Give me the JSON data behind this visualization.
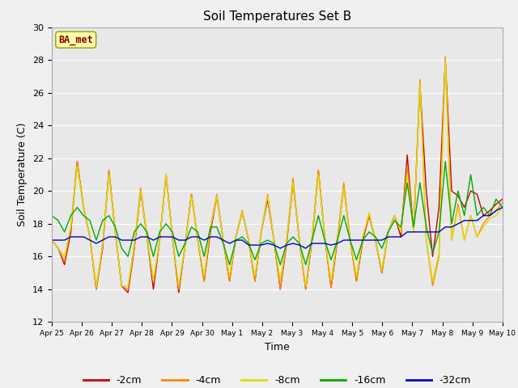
{
  "title": "Soil Temperatures Set B",
  "xlabel": "Time",
  "ylabel": "Soil Temperature (C)",
  "ylim": [
    12,
    30
  ],
  "yticks": [
    12,
    14,
    16,
    18,
    20,
    22,
    24,
    26,
    28,
    30
  ],
  "annotation_text": "BA_met",
  "fig_facecolor": "#f0f0f0",
  "ax_facecolor": "#e8e8e8",
  "colors": {
    "-2cm": "#cc0000",
    "-4cm": "#ff8800",
    "-8cm": "#dddd00",
    "-16cm": "#00aa00",
    "-32cm": "#0000cc"
  },
  "legend_labels": [
    "-2cm",
    "-4cm",
    "-8cm",
    "-16cm",
    "-32cm"
  ],
  "x_tick_labels": [
    "Apr 25",
    "Apr 26",
    "Apr 27",
    "Apr 28",
    "Apr 29",
    "Apr 30",
    "May 1",
    "May 2",
    "May 3",
    "May 4",
    "May 5",
    "May 6",
    "May 7",
    "May 8",
    "May 9",
    "May 10"
  ],
  "data": {
    "t2cm": [
      17.0,
      16.5,
      15.5,
      17.5,
      21.8,
      19.0,
      17.2,
      14.0,
      16.5,
      21.2,
      17.5,
      14.2,
      13.8,
      16.5,
      20.0,
      17.2,
      14.0,
      17.0,
      21.0,
      17.2,
      13.8,
      16.7,
      19.8,
      17.0,
      14.5,
      17.5,
      19.7,
      17.0,
      14.5,
      17.2,
      18.7,
      17.0,
      14.5,
      17.5,
      19.5,
      17.0,
      14.0,
      16.8,
      20.5,
      17.0,
      14.0,
      17.0,
      21.2,
      17.2,
      14.1,
      17.0,
      20.3,
      17.0,
      14.5,
      17.0,
      18.5,
      17.0,
      15.0,
      17.5,
      18.5,
      17.2,
      22.2,
      17.5,
      26.5,
      20.0,
      16.0,
      19.0,
      28.0,
      20.0,
      19.7,
      19.0,
      20.0,
      19.8,
      18.5,
      18.8,
      19.2,
      19.5
    ],
    "t4cm": [
      17.0,
      16.5,
      15.7,
      17.8,
      21.8,
      19.0,
      17.2,
      14.0,
      16.7,
      21.3,
      17.5,
      14.2,
      14.0,
      16.7,
      20.2,
      17.2,
      14.5,
      17.0,
      21.0,
      17.2,
      14.0,
      16.7,
      19.8,
      17.0,
      14.5,
      17.8,
      19.8,
      17.0,
      14.5,
      17.2,
      18.8,
      17.0,
      14.5,
      17.5,
      19.8,
      17.0,
      14.0,
      17.0,
      20.8,
      17.0,
      14.0,
      17.2,
      21.3,
      17.2,
      14.1,
      17.2,
      20.5,
      17.0,
      14.5,
      17.2,
      18.5,
      17.0,
      15.0,
      17.5,
      18.5,
      17.5,
      21.5,
      17.5,
      26.8,
      17.0,
      14.2,
      16.0,
      28.2,
      17.0,
      19.2,
      17.0,
      18.5,
      17.2,
      18.0,
      18.5,
      18.8,
      19.3
    ],
    "t8cm": [
      17.0,
      16.5,
      16.0,
      17.8,
      21.5,
      19.0,
      17.2,
      14.2,
      16.7,
      21.0,
      17.5,
      14.2,
      14.2,
      16.7,
      20.0,
      17.2,
      14.5,
      17.0,
      21.0,
      17.2,
      14.2,
      16.7,
      19.7,
      17.0,
      14.8,
      17.8,
      19.7,
      17.0,
      14.8,
      17.2,
      18.7,
      17.0,
      14.8,
      17.5,
      19.7,
      17.0,
      14.5,
      17.0,
      20.5,
      17.0,
      14.2,
      17.2,
      21.0,
      17.2,
      14.5,
      17.2,
      20.2,
      17.0,
      14.8,
      17.2,
      18.7,
      17.0,
      15.2,
      17.5,
      18.5,
      17.5,
      21.0,
      17.5,
      26.5,
      17.0,
      14.5,
      16.2,
      28.0,
      17.0,
      19.0,
      17.0,
      18.5,
      17.2,
      17.8,
      18.3,
      18.5,
      19.0
    ],
    "t16cm": [
      18.5,
      18.2,
      17.5,
      18.5,
      19.0,
      18.5,
      18.2,
      17.0,
      18.2,
      18.5,
      17.8,
      16.5,
      16.0,
      17.5,
      18.0,
      17.5,
      16.0,
      17.5,
      18.0,
      17.5,
      16.0,
      16.8,
      17.8,
      17.5,
      16.0,
      17.8,
      17.8,
      16.8,
      15.5,
      17.0,
      17.2,
      16.8,
      15.8,
      16.8,
      17.0,
      16.8,
      15.5,
      16.8,
      17.2,
      16.8,
      15.5,
      17.0,
      18.5,
      17.0,
      15.8,
      17.0,
      18.5,
      17.0,
      15.8,
      17.0,
      17.5,
      17.2,
      16.5,
      17.5,
      18.2,
      17.8,
      20.5,
      17.8,
      20.5,
      17.8,
      16.2,
      17.5,
      21.8,
      18.0,
      20.0,
      18.5,
      21.0,
      18.5,
      19.0,
      18.5,
      19.5,
      19.0
    ],
    "t32cm": [
      17.0,
      17.0,
      17.0,
      17.2,
      17.2,
      17.2,
      17.0,
      16.8,
      17.0,
      17.2,
      17.2,
      17.0,
      17.0,
      17.0,
      17.2,
      17.2,
      17.0,
      17.2,
      17.2,
      17.2,
      17.0,
      17.0,
      17.2,
      17.2,
      17.0,
      17.2,
      17.2,
      17.0,
      16.8,
      17.0,
      17.0,
      16.7,
      16.7,
      16.7,
      16.8,
      16.7,
      16.5,
      16.7,
      16.8,
      16.7,
      16.5,
      16.8,
      16.8,
      16.8,
      16.7,
      16.8,
      17.0,
      17.0,
      17.0,
      17.0,
      17.0,
      17.0,
      17.0,
      17.2,
      17.2,
      17.2,
      17.5,
      17.5,
      17.5,
      17.5,
      17.5,
      17.5,
      17.8,
      17.8,
      18.0,
      18.2,
      18.2,
      18.2,
      18.5,
      18.5,
      18.8,
      19.0
    ]
  }
}
